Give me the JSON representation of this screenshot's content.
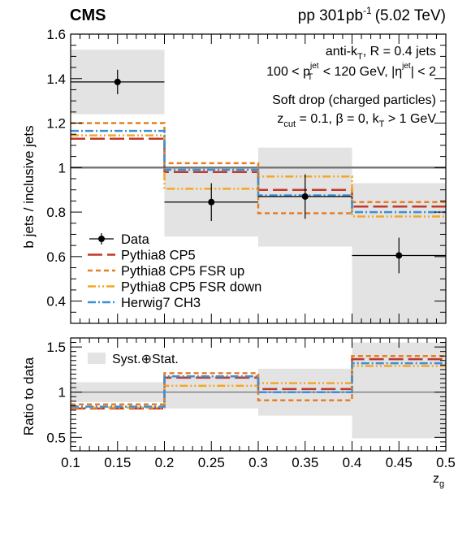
{
  "header": {
    "experiment": "CMS",
    "lumi_prefix": "pp 301",
    "lumi_unit": "pb",
    "lumi_exp": "-1",
    "energy": "(5.02 TeV)"
  },
  "annotations": {
    "line1": "anti-k",
    "line1_sub": "T",
    "line1_rest": ", R = 0.4 jets",
    "line2_a": "100 < p",
    "line2_sub": "T",
    "line2_sup": "jet",
    "line2_b": " < 120 GeV, |η",
    "line2_sup2": "jet",
    "line2_c": "| < 2",
    "line3": "Soft drop (charged particles)",
    "line4_a": "z",
    "line4_sub": "cut",
    "line4_b": " = 0.1, β = 0, k",
    "line4_sub2": "T",
    "line4_c": " > 1 GeV"
  },
  "chart_data": [
    {
      "type": "line",
      "panel": "main",
      "ylabel": "b jets / inclusive jets",
      "xlim": [
        0.1,
        0.5
      ],
      "ylim": [
        0.3,
        1.6
      ],
      "yticks": [
        "0.4",
        "0.6",
        "0.8",
        "1",
        "1.2",
        "1.4",
        "1.6"
      ],
      "bin_edges": [
        0.1,
        0.2,
        0.3,
        0.4,
        0.5
      ],
      "data": {
        "name": "Data",
        "x": [
          0.15,
          0.25,
          0.35,
          0.45
        ],
        "y": [
          1.385,
          0.845,
          0.87,
          0.605
        ],
        "stat_err": [
          0.055,
          0.085,
          0.1,
          0.08
        ],
        "syst_band": [
          [
            1.24,
            1.53
          ],
          [
            0.69,
            1.0
          ],
          [
            0.645,
            1.09
          ],
          [
            0.3,
            0.93
          ]
        ]
      },
      "series": [
        {
          "name": "Pythia8 CP5",
          "values": [
            1.13,
            0.98,
            0.9,
            0.825
          ],
          "color": "#c0392b"
        },
        {
          "name": "Pythia8 CP5 FSR up",
          "values": [
            1.2,
            1.02,
            0.795,
            0.845
          ],
          "color": "#e67e22"
        },
        {
          "name": "Pythia8 CP5 FSR down",
          "values": [
            1.145,
            0.905,
            0.96,
            0.78
          ],
          "color": "#f5a623"
        },
        {
          "name": "Herwig7 CH3",
          "values": [
            1.165,
            0.99,
            0.875,
            0.8
          ],
          "color": "#3b8fd8"
        }
      ]
    },
    {
      "type": "line",
      "panel": "ratio",
      "ylabel": "Ratio to data",
      "xlabel": "z",
      "xlabel_sub": "g",
      "xlim": [
        0.1,
        0.5
      ],
      "ylim": [
        0.35,
        1.6
      ],
      "xticks": [
        "0.1",
        "0.15",
        "0.2",
        "0.25",
        "0.3",
        "0.35",
        "0.4",
        "0.45",
        "0.5"
      ],
      "yticks": [
        "0.5",
        "1",
        "1.5"
      ],
      "syst_band": [
        [
          0.89,
          1.11
        ],
        [
          0.82,
          1.18
        ],
        [
          0.74,
          1.26
        ],
        [
          0.49,
          1.55
        ]
      ],
      "syst_label": "Syst.⊕Stat.",
      "series": [
        {
          "name": "Pythia8 CP5",
          "values": [
            0.82,
            1.16,
            1.035,
            1.365
          ]
        },
        {
          "name": "Pythia8 CP5 FSR up",
          "values": [
            0.865,
            1.21,
            0.91,
            1.4
          ]
        },
        {
          "name": "Pythia8 CP5 FSR down",
          "values": [
            0.83,
            1.07,
            1.1,
            1.29
          ]
        },
        {
          "name": "Herwig7 CH3",
          "values": [
            0.84,
            1.175,
            1.0,
            1.32
          ]
        }
      ]
    }
  ]
}
